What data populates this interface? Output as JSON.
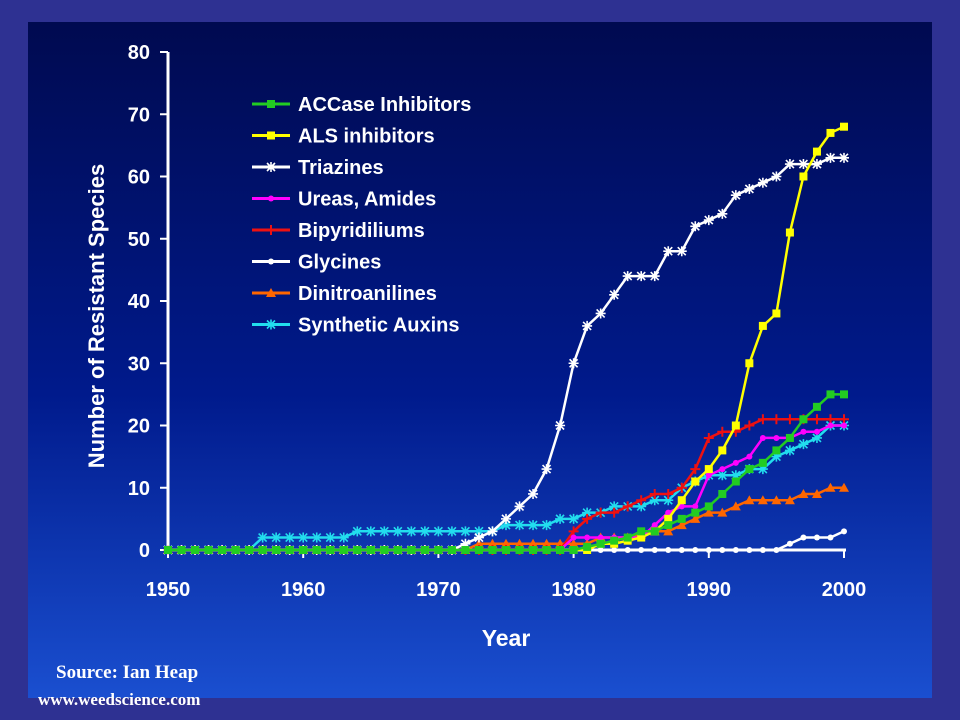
{
  "source_line": "Source: Ian Heap",
  "source_url": "www.weedscience.com",
  "chart_data": {
    "type": "line",
    "xlabel": "Year",
    "ylabel": "Number of Resistant Species",
    "xlim": [
      1950,
      2000
    ],
    "ylim": [
      0,
      80
    ],
    "xticks": [
      1950,
      1960,
      1970,
      1980,
      1990,
      2000
    ],
    "yticks": [
      0,
      10,
      20,
      30,
      40,
      50,
      60,
      70,
      80
    ],
    "legend_position": "top-left",
    "series": [
      {
        "name": "ACCase Inhibitors",
        "color": "#22cc22",
        "marker": "square",
        "points": [
          [
            1950,
            0
          ],
          [
            1980,
            0
          ],
          [
            1982,
            1
          ],
          [
            1984,
            2
          ],
          [
            1985,
            3
          ],
          [
            1986,
            3
          ],
          [
            1987,
            4
          ],
          [
            1988,
            5
          ],
          [
            1989,
            6
          ],
          [
            1990,
            7
          ],
          [
            1991,
            9
          ],
          [
            1992,
            11
          ],
          [
            1993,
            13
          ],
          [
            1994,
            14
          ],
          [
            1995,
            16
          ],
          [
            1996,
            18
          ],
          [
            1997,
            21
          ],
          [
            1998,
            23
          ],
          [
            1999,
            25
          ],
          [
            2000,
            25
          ]
        ]
      },
      {
        "name": "ALS inhibitors",
        "color": "#ffff00",
        "marker": "square",
        "points": [
          [
            1950,
            0
          ],
          [
            1981,
            0
          ],
          [
            1982,
            1
          ],
          [
            1983,
            1
          ],
          [
            1985,
            2
          ],
          [
            1986,
            3
          ],
          [
            1987,
            5
          ],
          [
            1988,
            8
          ],
          [
            1989,
            11
          ],
          [
            1990,
            13
          ],
          [
            1991,
            16
          ],
          [
            1992,
            20
          ],
          [
            1993,
            30
          ],
          [
            1994,
            36
          ],
          [
            1995,
            38
          ],
          [
            1996,
            51
          ],
          [
            1997,
            60
          ],
          [
            1998,
            64
          ],
          [
            1999,
            67
          ],
          [
            2000,
            68
          ]
        ]
      },
      {
        "name": "Triazines",
        "color": "#ffffff",
        "marker": "asterisk",
        "points": [
          [
            1950,
            0
          ],
          [
            1970,
            0
          ],
          [
            1971,
            0
          ],
          [
            1972,
            1
          ],
          [
            1973,
            2
          ],
          [
            1974,
            3
          ],
          [
            1975,
            5
          ],
          [
            1976,
            7
          ],
          [
            1977,
            9
          ],
          [
            1978,
            13
          ],
          [
            1979,
            20
          ],
          [
            1980,
            30
          ],
          [
            1981,
            36
          ],
          [
            1982,
            38
          ],
          [
            1983,
            41
          ],
          [
            1984,
            44
          ],
          [
            1985,
            44
          ],
          [
            1986,
            44
          ],
          [
            1987,
            48
          ],
          [
            1988,
            48
          ],
          [
            1989,
            52
          ],
          [
            1990,
            53
          ],
          [
            1991,
            54
          ],
          [
            1992,
            57
          ],
          [
            1993,
            58
          ],
          [
            1994,
            59
          ],
          [
            1995,
            60
          ],
          [
            1996,
            62
          ],
          [
            1997,
            62
          ],
          [
            1998,
            62
          ],
          [
            1999,
            63
          ],
          [
            2000,
            63
          ]
        ]
      },
      {
        "name": "Ureas, Amides",
        "color": "#ff00ff",
        "marker": "dot",
        "points": [
          [
            1950,
            0
          ],
          [
            1979,
            0
          ],
          [
            1980,
            2
          ],
          [
            1982,
            2
          ],
          [
            1984,
            2
          ],
          [
            1985,
            2
          ],
          [
            1986,
            4
          ],
          [
            1987,
            6
          ],
          [
            1988,
            7
          ],
          [
            1989,
            7
          ],
          [
            1990,
            12
          ],
          [
            1991,
            13
          ],
          [
            1992,
            14
          ],
          [
            1993,
            15
          ],
          [
            1994,
            18
          ],
          [
            1995,
            18
          ],
          [
            1996,
            18
          ],
          [
            1997,
            19
          ],
          [
            1998,
            19
          ],
          [
            1999,
            20
          ],
          [
            2000,
            20
          ]
        ]
      },
      {
        "name": "Bipyridiliums",
        "color": "#ee1111",
        "marker": "plus",
        "points": [
          [
            1950,
            0
          ],
          [
            1979,
            0
          ],
          [
            1980,
            3
          ],
          [
            1981,
            5
          ],
          [
            1982,
            6
          ],
          [
            1983,
            6
          ],
          [
            1984,
            7
          ],
          [
            1985,
            8
          ],
          [
            1986,
            9
          ],
          [
            1987,
            9
          ],
          [
            1988,
            10
          ],
          [
            1989,
            13
          ],
          [
            1990,
            18
          ],
          [
            1991,
            19
          ],
          [
            1992,
            19
          ],
          [
            1993,
            20
          ],
          [
            1994,
            21
          ],
          [
            1995,
            21
          ],
          [
            1996,
            21
          ],
          [
            1997,
            21
          ],
          [
            1998,
            21
          ],
          [
            1999,
            21
          ],
          [
            2000,
            21
          ]
        ]
      },
      {
        "name": "Glycines",
        "color": "#ffffff",
        "marker": "dot",
        "points": [
          [
            1950,
            0
          ],
          [
            1995,
            0
          ],
          [
            1996,
            1
          ],
          [
            1997,
            2
          ],
          [
            1998,
            2
          ],
          [
            1999,
            2
          ],
          [
            2000,
            3
          ]
        ]
      },
      {
        "name": "Dinitroanilines",
        "color": "#ff6600",
        "marker": "triangle",
        "points": [
          [
            1950,
            0
          ],
          [
            1972,
            0
          ],
          [
            1973,
            1
          ],
          [
            1980,
            1
          ],
          [
            1981,
            1
          ],
          [
            1982,
            2
          ],
          [
            1984,
            2
          ],
          [
            1986,
            3
          ],
          [
            1987,
            3
          ],
          [
            1988,
            4
          ],
          [
            1989,
            5
          ],
          [
            1990,
            6
          ],
          [
            1991,
            6
          ],
          [
            1992,
            7
          ],
          [
            1993,
            8
          ],
          [
            1994,
            8
          ],
          [
            1995,
            8
          ],
          [
            1996,
            8
          ],
          [
            1997,
            9
          ],
          [
            1998,
            9
          ],
          [
            1999,
            10
          ],
          [
            2000,
            10
          ]
        ]
      },
      {
        "name": "Synthetic Auxins",
        "color": "#22ddee",
        "marker": "asterisk",
        "points": [
          [
            1950,
            0
          ],
          [
            1956,
            0
          ],
          [
            1957,
            2
          ],
          [
            1963,
            2
          ],
          [
            1964,
            3
          ],
          [
            1972,
            3
          ],
          [
            1973,
            3
          ],
          [
            1974,
            3
          ],
          [
            1975,
            4
          ],
          [
            1977,
            4
          ],
          [
            1978,
            4
          ],
          [
            1979,
            5
          ],
          [
            1980,
            5
          ],
          [
            1981,
            6
          ],
          [
            1982,
            6
          ],
          [
            1983,
            7
          ],
          [
            1984,
            7
          ],
          [
            1985,
            7
          ],
          [
            1986,
            8
          ],
          [
            1987,
            8
          ],
          [
            1988,
            10
          ],
          [
            1989,
            11
          ],
          [
            1990,
            12
          ],
          [
            1991,
            12
          ],
          [
            1992,
            12
          ],
          [
            1993,
            13
          ],
          [
            1994,
            13
          ],
          [
            1995,
            15
          ],
          [
            1996,
            16
          ],
          [
            1997,
            17
          ],
          [
            1998,
            18
          ],
          [
            1999,
            20
          ],
          [
            2000,
            20
          ]
        ]
      }
    ]
  }
}
